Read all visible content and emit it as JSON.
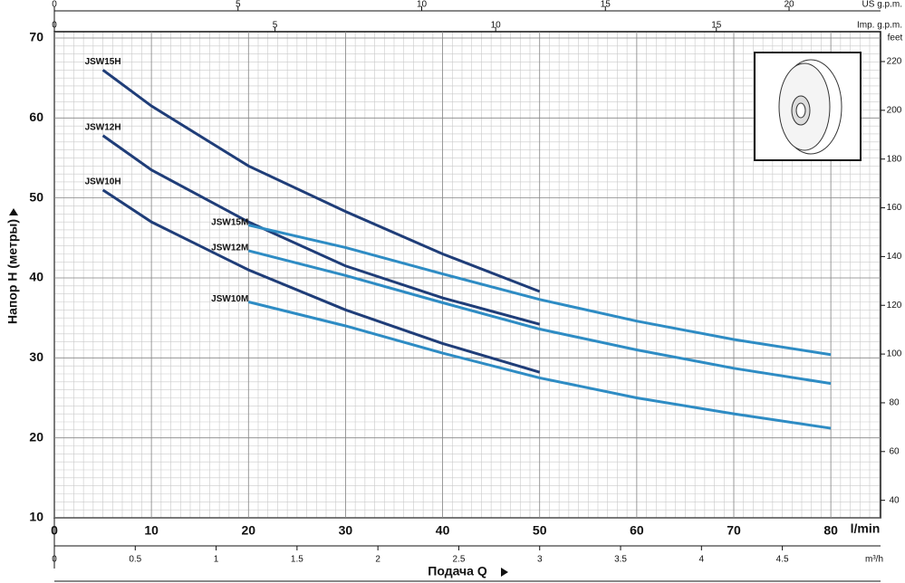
{
  "chart_data": {
    "type": "line",
    "ylabel": "Напор H (метры)",
    "xlabel": "Подача Q",
    "xunit": "l/min",
    "xlim": [
      0,
      85.12
    ],
    "xticks": [
      0,
      10,
      20,
      30,
      40,
      50,
      60,
      70,
      80
    ],
    "ylim": [
      10,
      70.79
    ],
    "yticks": [
      10,
      20,
      30,
      40,
      50,
      60,
      70
    ],
    "y2label": "feet",
    "y2lim": [
      32.81,
      232.26
    ],
    "y2ticks": [
      40,
      60,
      80,
      100,
      120,
      140,
      160,
      180,
      200,
      220
    ],
    "top_axes": [
      {
        "label": "US g.p.m.",
        "lim": [
          0,
          22.49
        ],
        "ticks": [
          0,
          5,
          10,
          15,
          20
        ]
      },
      {
        "label": "Imp. g.p.m.",
        "lim": [
          0,
          18.72
        ],
        "ticks": [
          0,
          5,
          10,
          15
        ]
      }
    ],
    "bottom_axis": {
      "label": "m³/h",
      "lim": [
        0,
        5.107
      ],
      "ticks": [
        0,
        0.5,
        1,
        1.5,
        2,
        2.5,
        3,
        3.5,
        4,
        4.5
      ]
    },
    "grid": true,
    "minor_grid_step": [
      1,
      1
    ],
    "series": [
      {
        "name": "JSW15H",
        "color": "#1f3d78",
        "x": [
          5,
          10,
          20,
          30,
          40,
          50
        ],
        "values": [
          66,
          61.5,
          54,
          48.3,
          43,
          38.3
        ]
      },
      {
        "name": "JSW12H",
        "color": "#1f3d78",
        "x": [
          5,
          10,
          20,
          30,
          40,
          50
        ],
        "values": [
          57.8,
          53.5,
          47,
          41.5,
          37.5,
          34.2
        ]
      },
      {
        "name": "JSW10H",
        "color": "#1f3d78",
        "x": [
          5,
          10,
          20,
          30,
          40,
          50
        ],
        "values": [
          51,
          47,
          41,
          36,
          31.8,
          28.2
        ]
      },
      {
        "name": "JSW15M",
        "color": "#2e8cc4",
        "x": [
          20,
          30,
          40,
          50,
          60,
          70,
          80
        ],
        "values": [
          46.6,
          43.8,
          40.5,
          37.3,
          34.6,
          32.3,
          30.4
        ]
      },
      {
        "name": "JSW12M",
        "color": "#2e8cc4",
        "x": [
          20,
          30,
          40,
          50,
          60,
          70,
          80
        ],
        "values": [
          43.4,
          40.3,
          36.9,
          33.6,
          31,
          28.7,
          26.8
        ]
      },
      {
        "name": "JSW10M",
        "color": "#2e8cc4",
        "x": [
          20,
          30,
          40,
          50,
          60,
          70,
          80
        ],
        "values": [
          37,
          34,
          30.6,
          27.5,
          25,
          23,
          21.2
        ]
      }
    ]
  }
}
